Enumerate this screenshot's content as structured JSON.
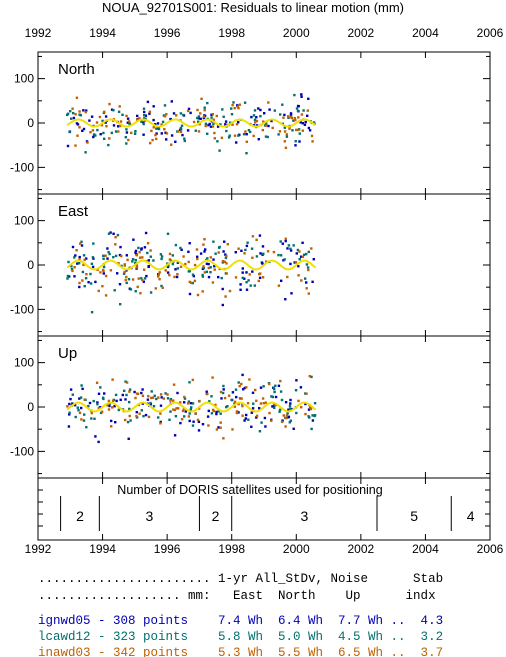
{
  "title": "NOUA_92701S001: Residuals to linear motion (mm)",
  "x_axis": {
    "min": 1992,
    "max": 2006,
    "ticks": [
      "1992",
      "1994",
      "1996",
      "1998",
      "2000",
      "2002",
      "2004",
      "2006"
    ]
  },
  "panels": [
    {
      "label": "North",
      "ylim": [
        -160,
        160
      ],
      "yticks": [
        "100",
        "0",
        "-100"
      ]
    },
    {
      "label": "East",
      "ylim": [
        -160,
        160
      ],
      "yticks": [
        "100",
        "0",
        "-100"
      ]
    },
    {
      "label": "Up",
      "ylim": [
        -160,
        160
      ],
      "yticks": [
        "100",
        "0",
        "-100"
      ]
    }
  ],
  "satellites": {
    "title": "Number of DORIS satellites used for positioning",
    "segments": [
      {
        "start": 1992.7,
        "end": 1993.9,
        "count": "2"
      },
      {
        "start": 1993.9,
        "end": 1997.0,
        "count": "3"
      },
      {
        "start": 1997.0,
        "end": 1998.0,
        "count": "2"
      },
      {
        "start": 1998.0,
        "end": 2002.5,
        "count": "3"
      },
      {
        "start": 2002.5,
        "end": 2004.8,
        "count": "5"
      },
      {
        "start": 2004.8,
        "end": 2006.0,
        "count": "4"
      }
    ]
  },
  "stats": {
    "header1": "....................... 1-yr All_StDv, Noise      Stab",
    "header2": "................... mm:   East  North    Up      indx",
    "rows": [
      {
        "text": "ignwd05 - 308 points    7.4 Wh  6.4 Wh  7.7 Wh ..  4.3",
        "color": "#0000b4"
      },
      {
        "text": "lcawd12 - 323 points    5.8 Wh  5.0 Wh  4.5 Wh ..  3.2",
        "color": "#007070"
      },
      {
        "text": "inawd03 - 342 points    5.3 Wh  5.5 Wh  6.5 Wh ..  3.7",
        "color": "#c06000"
      }
    ]
  },
  "chart_data": {
    "type": "scatter",
    "title": "NOUA_92701S001: Residuals to linear motion (mm)",
    "xlabel": "",
    "ylabel": "",
    "xlim": [
      1992,
      2006
    ],
    "ylim": [
      -160,
      160
    ],
    "time_range": [
      1992.9,
      2000.6
    ],
    "series": [
      {
        "name": "ignwd05",
        "points": 308,
        "color": "#0000b4"
      },
      {
        "name": "lcawd12",
        "points": 323,
        "color": "#007070"
      },
      {
        "name": "inawd03",
        "points": 342,
        "color": "#c06000"
      }
    ],
    "annual_signal_color": "#f0e000",
    "panels": [
      {
        "label": "North",
        "scatter_std": 24,
        "annual_amplitude": 8
      },
      {
        "label": "East",
        "scatter_std": 34,
        "annual_amplitude": 10
      },
      {
        "label": "Up",
        "scatter_std": 27,
        "annual_amplitude": 10
      }
    ]
  }
}
